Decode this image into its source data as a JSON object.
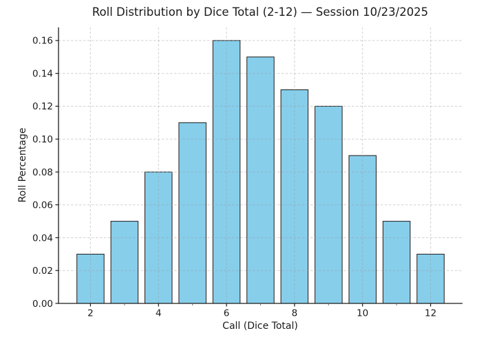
{
  "chart_data": {
    "type": "bar",
    "title": "Roll Distribution by Dice Total (2-12) — Session 10/23/2025",
    "xlabel": "Call (Dice Total)",
    "ylabel": "Roll Percentage",
    "categories": [
      2,
      3,
      4,
      5,
      6,
      7,
      8,
      9,
      10,
      11,
      12
    ],
    "values": [
      0.03,
      0.05,
      0.08,
      0.11,
      0.16,
      0.15,
      0.13,
      0.12,
      0.09,
      0.05,
      0.03
    ],
    "bar_width": 0.8,
    "xlim": [
      1.06,
      12.94
    ],
    "ylim": [
      0,
      0.168
    ],
    "xticks_labeled": [
      2,
      4,
      6,
      8,
      10,
      12
    ],
    "xticks_minor": [
      3,
      5,
      7,
      9,
      11
    ],
    "yticks": [
      0,
      0.02,
      0.04,
      0.06,
      0.08,
      0.1,
      0.12,
      0.14,
      0.16
    ],
    "ytick_labels": [
      "0.00",
      "0.02",
      "0.04",
      "0.06",
      "0.08",
      "0.10",
      "0.12",
      "0.14",
      "0.16"
    ],
    "grid": true,
    "legend": null,
    "colors": {
      "bar_fill": "#87CEEB",
      "bar_edge": "#1a1a1a",
      "grid": "#999999",
      "spine": "#1a1a1a",
      "text": "#1a1a1a",
      "background": "#ffffff"
    }
  }
}
